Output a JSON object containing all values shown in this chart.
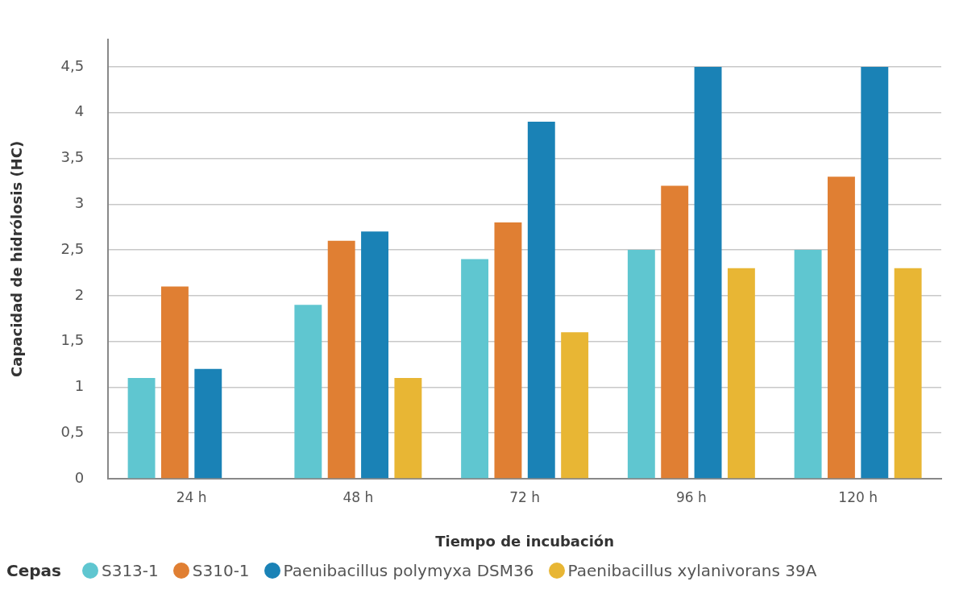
{
  "chart_data": {
    "type": "bar",
    "xlabel": "Tiempo de incubación",
    "ylabel": "Capacidad de hidrólosis (HC)",
    "legend_title": "Cepas",
    "legend": "bottom",
    "grid": "y",
    "categories": [
      "24 h",
      "48 h",
      "72 h",
      "96 h",
      "120 h"
    ],
    "ylim": [
      0,
      4.8
    ],
    "yticks": [
      0,
      {
        "value": 0.5,
        "label": "0,5"
      },
      1,
      {
        "value": 1.5,
        "label": "1,5"
      },
      2,
      {
        "value": 2.5,
        "label": "2,5"
      },
      3,
      {
        "value": 3.5,
        "label": "3,5"
      },
      4,
      {
        "value": 4.5,
        "label": "4,5"
      }
    ],
    "series": [
      {
        "name": "S313-1",
        "color": "#5fc6d0",
        "values": [
          1.1,
          1.9,
          2.4,
          2.5,
          2.5
        ]
      },
      {
        "name": "S310-1",
        "color": "#e07f33",
        "values": [
          2.1,
          2.6,
          2.8,
          3.2,
          3.3
        ]
      },
      {
        "name": "Paenibacillus polymyxa DSM36",
        "color": "#1a82b6",
        "values": [
          1.2,
          2.7,
          3.9,
          4.5,
          4.5
        ]
      },
      {
        "name": "Paenibacillus xylanivorans 39A",
        "color": "#e8b634",
        "values": [
          null,
          1.1,
          1.6,
          2.3,
          2.3
        ]
      }
    ]
  }
}
